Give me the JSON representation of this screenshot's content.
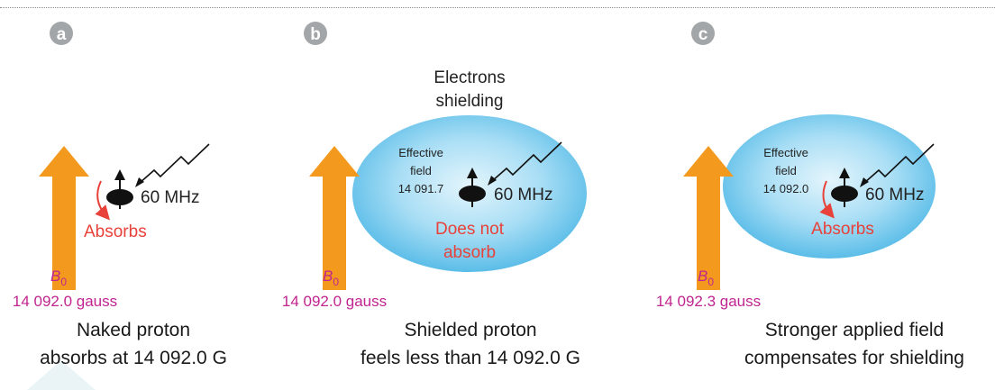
{
  "panels": [
    {
      "badge": "a",
      "freq": "60 MHz",
      "absorb_label": "Absorbs",
      "field_symbol": "B",
      "field_subscript": "0",
      "field_value": "14 092.0 gauss",
      "caption_line1": "Naked proton",
      "caption_line2": "absorbs at 14 092.0 G"
    },
    {
      "badge": "b",
      "title_line1": "Electrons",
      "title_line2": "shielding",
      "effective_line1": "Effective",
      "effective_line2": "field",
      "effective_value": "14 091.7",
      "freq": "60 MHz",
      "absorb_line1": "Does not",
      "absorb_line2": "absorb",
      "field_symbol": "B",
      "field_subscript": "0",
      "field_value": "14 092.0 gauss",
      "caption_line1": "Shielded proton",
      "caption_line2": "feels less than 14 092.0 G"
    },
    {
      "badge": "c",
      "effective_line1": "Effective",
      "effective_line2": "field",
      "effective_value": "14 092.0",
      "freq": "60 MHz",
      "absorb_label": "Absorbs",
      "field_symbol": "B",
      "field_subscript": "0",
      "field_value": "14 092.3 gauss",
      "caption_line1": "Stronger applied field",
      "caption_line2": "compensates for shielding"
    }
  ],
  "colors": {
    "badge": "#a3a6a8",
    "field_arrow": "#f39a1e",
    "cloud_inner": "#e4f5fc",
    "cloud_outer": "#5bbde8",
    "absorb_red": "#e8413a",
    "field_label": "#c0258f",
    "proton": "#111111"
  }
}
